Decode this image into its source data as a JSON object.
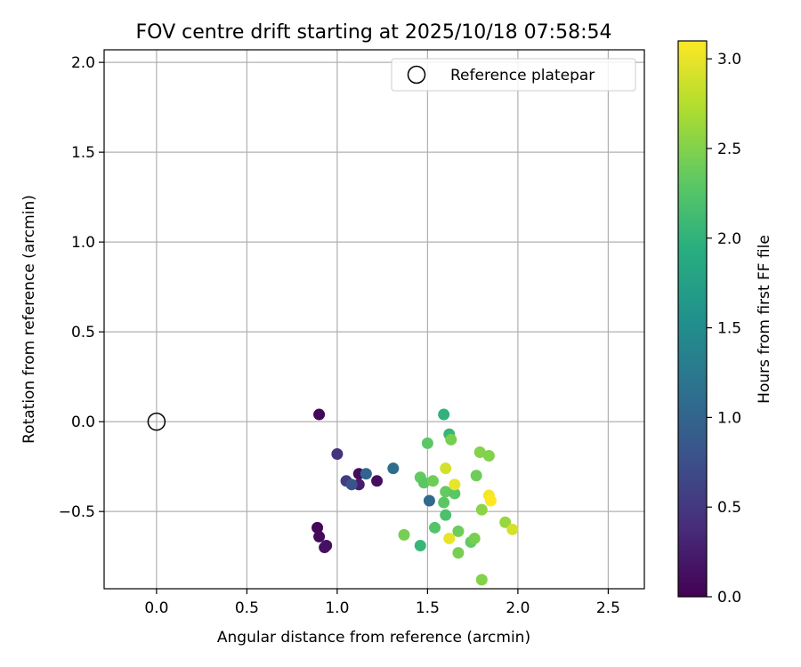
{
  "chart_data": {
    "type": "scatter",
    "title": "FOV centre drift starting at 2025/10/18 07:58:54",
    "xlabel": "Angular distance from reference (arcmin)",
    "ylabel": "Rotation from reference (arcmin)",
    "xlim": [
      -0.29,
      2.7
    ],
    "ylim": [
      -0.93,
      2.07
    ],
    "xticks": [
      "0.0",
      "0.5",
      "1.0",
      "1.5",
      "2.0",
      "2.5"
    ],
    "yticks": [
      "−0.5",
      "0.0",
      "0.5",
      "1.0",
      "1.5",
      "2.0"
    ],
    "xtick_values": [
      0.0,
      0.5,
      1.0,
      1.5,
      2.0,
      2.5
    ],
    "ytick_values": [
      -0.5,
      0.0,
      0.5,
      1.0,
      1.5,
      2.0
    ],
    "grid": true,
    "legend": {
      "position": "top-right",
      "label": "Reference platepar"
    },
    "reference_point": {
      "x": 0.0,
      "y": 0.0
    },
    "colorbar": {
      "label": "Hours from first FF file",
      "range": [
        0.0,
        3.1
      ],
      "ticks": [
        "0.0",
        "0.5",
        "1.0",
        "1.5",
        "2.0",
        "2.5",
        "3.0"
      ],
      "tick_values": [
        0.0,
        0.5,
        1.0,
        1.5,
        2.0,
        2.5,
        3.0
      ],
      "colormap": "viridis"
    },
    "points": [
      {
        "x": 0.9,
        "y": 0.04,
        "h": 0.05
      },
      {
        "x": 0.89,
        "y": -0.59,
        "h": 0.05
      },
      {
        "x": 0.9,
        "y": -0.64,
        "h": 0.08
      },
      {
        "x": 0.93,
        "y": -0.7,
        "h": 0.12
      },
      {
        "x": 0.94,
        "y": -0.69,
        "h": 0.15
      },
      {
        "x": 1.12,
        "y": -0.29,
        "h": 0.1
      },
      {
        "x": 1.22,
        "y": -0.33,
        "h": 0.12
      },
      {
        "x": 1.12,
        "y": -0.35,
        "h": 0.25
      },
      {
        "x": 1.0,
        "y": -0.18,
        "h": 0.45
      },
      {
        "x": 1.05,
        "y": -0.33,
        "h": 0.55
      },
      {
        "x": 1.08,
        "y": -0.35,
        "h": 0.8
      },
      {
        "x": 1.16,
        "y": -0.29,
        "h": 1.0
      },
      {
        "x": 1.31,
        "y": -0.26,
        "h": 1.1
      },
      {
        "x": 1.51,
        "y": -0.44,
        "h": 1.05
      },
      {
        "x": 1.59,
        "y": 0.04,
        "h": 2.0
      },
      {
        "x": 1.62,
        "y": -0.07,
        "h": 2.05
      },
      {
        "x": 1.5,
        "y": -0.12,
        "h": 2.3
      },
      {
        "x": 1.63,
        "y": -0.1,
        "h": 2.45
      },
      {
        "x": 1.46,
        "y": -0.31,
        "h": 2.35
      },
      {
        "x": 1.48,
        "y": -0.34,
        "h": 2.3
      },
      {
        "x": 1.53,
        "y": -0.33,
        "h": 2.4
      },
      {
        "x": 1.59,
        "y": -0.45,
        "h": 2.3
      },
      {
        "x": 1.6,
        "y": -0.39,
        "h": 2.35
      },
      {
        "x": 1.65,
        "y": -0.4,
        "h": 2.3
      },
      {
        "x": 1.6,
        "y": -0.52,
        "h": 2.2
      },
      {
        "x": 1.37,
        "y": -0.63,
        "h": 2.45
      },
      {
        "x": 1.46,
        "y": -0.69,
        "h": 2.05
      },
      {
        "x": 1.54,
        "y": -0.59,
        "h": 2.25
      },
      {
        "x": 1.67,
        "y": -0.61,
        "h": 2.4
      },
      {
        "x": 1.67,
        "y": -0.73,
        "h": 2.45
      },
      {
        "x": 1.74,
        "y": -0.67,
        "h": 2.35
      },
      {
        "x": 1.76,
        "y": -0.65,
        "h": 2.45
      },
      {
        "x": 1.77,
        "y": -0.3,
        "h": 2.4
      },
      {
        "x": 1.79,
        "y": -0.17,
        "h": 2.5
      },
      {
        "x": 1.84,
        "y": -0.19,
        "h": 2.5
      },
      {
        "x": 1.8,
        "y": -0.49,
        "h": 2.55
      },
      {
        "x": 1.93,
        "y": -0.56,
        "h": 2.6
      },
      {
        "x": 1.8,
        "y": -0.88,
        "h": 2.5
      },
      {
        "x": 1.6,
        "y": -0.26,
        "h": 2.9
      },
      {
        "x": 1.65,
        "y": -0.35,
        "h": 3.0
      },
      {
        "x": 1.62,
        "y": -0.65,
        "h": 3.0
      },
      {
        "x": 1.84,
        "y": -0.41,
        "h": 3.05
      },
      {
        "x": 1.85,
        "y": -0.44,
        "h": 3.1
      },
      {
        "x": 1.97,
        "y": -0.6,
        "h": 2.9
      }
    ]
  }
}
